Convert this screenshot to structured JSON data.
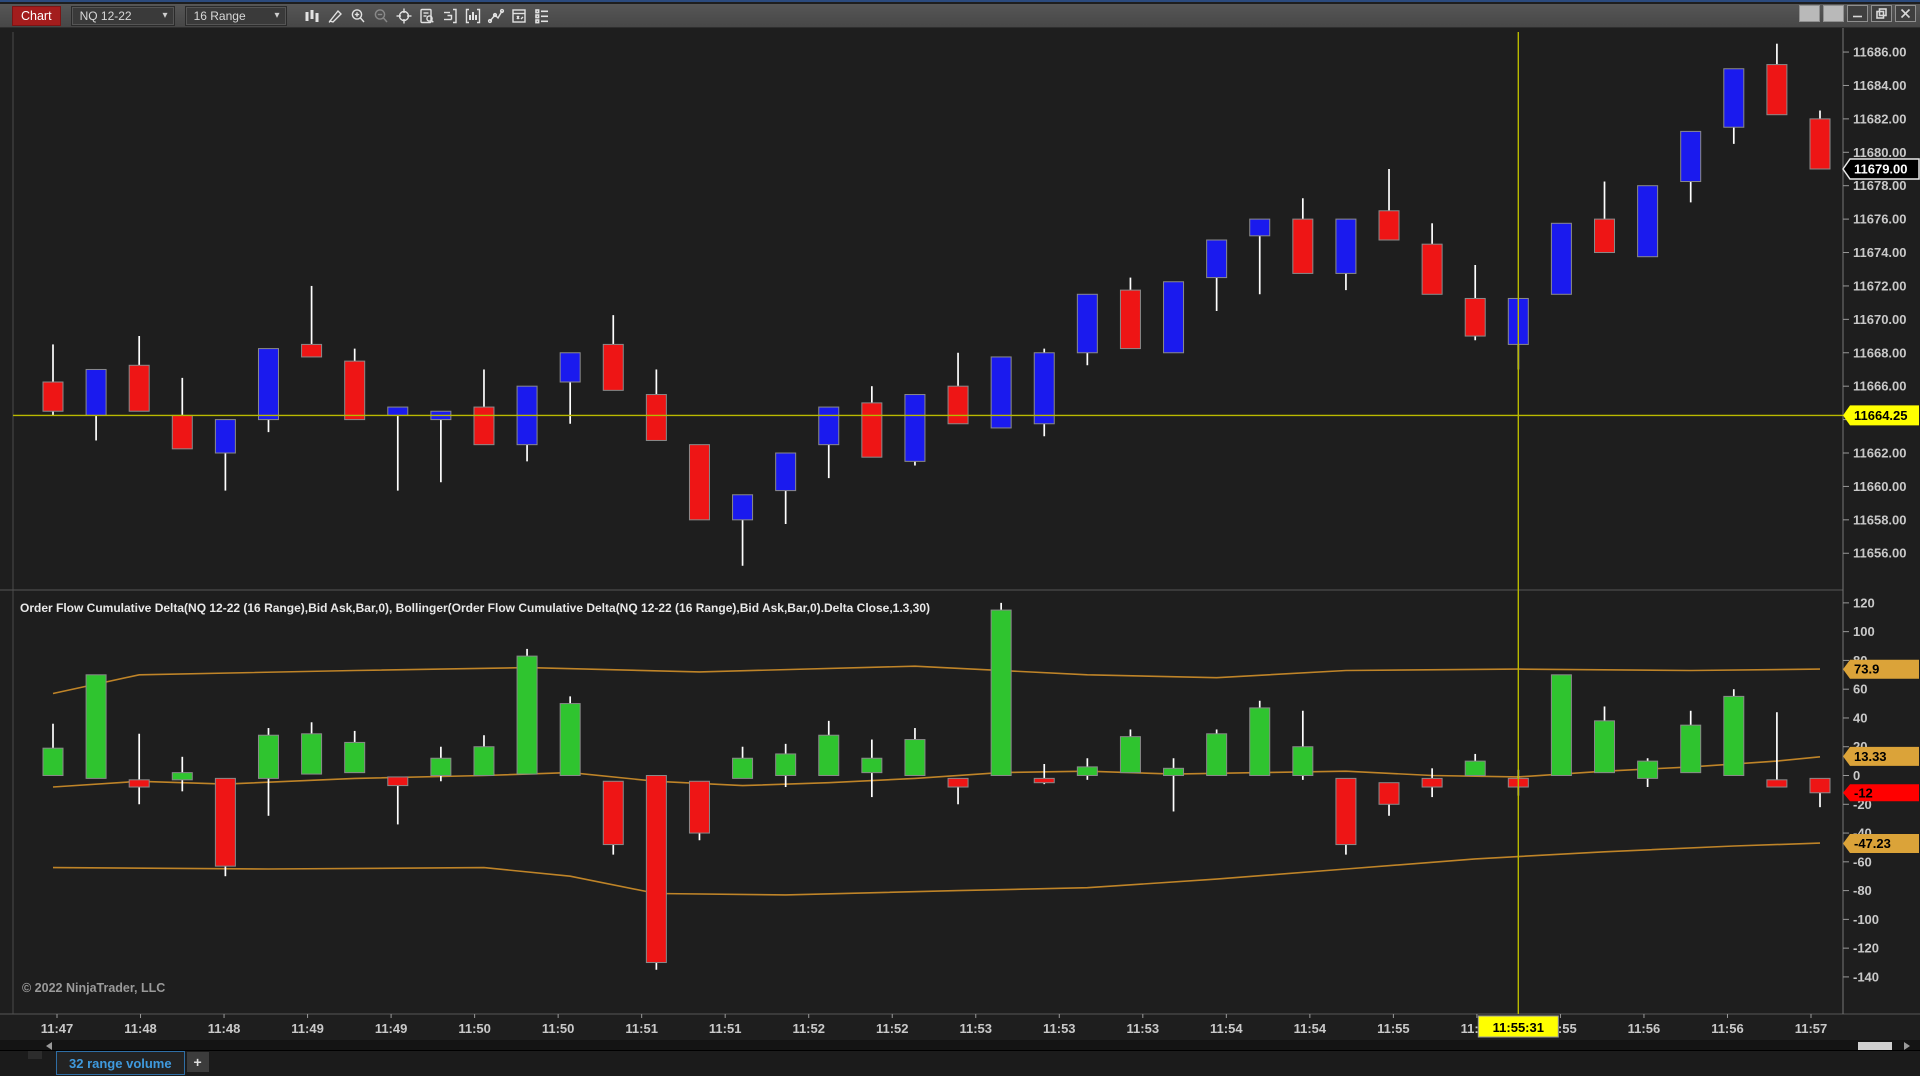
{
  "window": {
    "title": "Chart",
    "controls": [
      {
        "name": "pin-button",
        "type": "solid"
      },
      {
        "name": "settings-button",
        "type": "solid"
      },
      {
        "name": "minimize-button",
        "type": "minimize"
      },
      {
        "name": "restore-button",
        "type": "restore"
      },
      {
        "name": "close-button",
        "type": "close"
      }
    ]
  },
  "toolbar": {
    "chart_label": "Chart",
    "instrument": "NQ 12-22",
    "period": "16 Range",
    "icons": [
      "chart-style-icon",
      "drawing-tools-icon",
      "zoom-in-icon",
      "zoom-out-icon",
      "crosshair-icon",
      "data-box-icon",
      "chart-trader-icon",
      "indicators-icon",
      "drawing-line-icon",
      "strategies-icon",
      "properties-icon"
    ]
  },
  "footer": {
    "tab_label": "32 range volume",
    "add_tab_label": "+"
  },
  "copyright": "© 2022 NinjaTrader, LLC",
  "indicator_title": "Order Flow Cumulative Delta(NQ 12-22 (16 Range),Bid Ask,Bar,0), Bollinger(Order Flow Cumulative Delta(NQ 12-22 (16 Range),Bid Ask,Bar,0).Delta Close,1.3,30)",
  "crosshair": {
    "time_label": "11:55:31",
    "price_label": "11664.25",
    "bar_index": 35
  },
  "price_axis": {
    "last_price": "11679.00"
  },
  "delta_axis": {
    "upper_band": "73.9",
    "middle_band": "13.33",
    "last_delta": "-12",
    "lower_band": "-47.23"
  },
  "colors": {
    "bg": "#1e1e1e",
    "panel_border": "#555555",
    "axis_text": "#c9c9c9",
    "up": "#1a1aee",
    "down": "#ee1515",
    "delta_up": "#2fc42f",
    "delta_down": "#ee1515",
    "wick": "#ffffff",
    "candle_edge": "#8a8a8a",
    "band": "#bf8428",
    "crosshair": "#b9b900",
    "marker_last_bg": "#000000",
    "marker_last_text": "#ffffff",
    "marker_cross_bg": "#ffff00",
    "marker_band_bg": "#dba339",
    "marker_delta_bg": "#ff0000",
    "marker_dark_text": "#000000",
    "title_text": "#e8e8e8",
    "copyright_text": "#9a9a9a"
  },
  "time_axis": {
    "labels": [
      "11:47",
      "11:48",
      "11:48",
      "11:49",
      "11:49",
      "11:50",
      "11:50",
      "11:51",
      "11:51",
      "11:52",
      "11:52",
      "11:53",
      "11:53",
      "11:53",
      "11:54",
      "11:54",
      "11:55",
      "11:55",
      "11:55",
      "11:56",
      "11:56",
      "11:57"
    ]
  },
  "chart_data": [
    {
      "type": "candlestick",
      "title": "NQ 12-22 (16 Range) price panel",
      "ylabel": "Price",
      "ylim": [
        11653.8,
        11687.2
      ],
      "yticks": [
        11686,
        11684,
        11682,
        11680,
        11678,
        11676,
        11674,
        11672,
        11670,
        11668,
        11666,
        11664,
        11662,
        11660,
        11658,
        11656
      ],
      "last_price": 11679.0,
      "crosshair_price": 11664.25,
      "bars": [
        {
          "o": 11666.25,
          "h": 11668.5,
          "l": 11664.25,
          "c": 11664.5
        },
        {
          "o": 11664.25,
          "h": 11667.0,
          "l": 11662.75,
          "c": 11667.0
        },
        {
          "o": 11667.25,
          "h": 11669.0,
          "l": 11664.5,
          "c": 11664.5
        },
        {
          "o": 11664.25,
          "h": 11666.5,
          "l": 11662.25,
          "c": 11662.25
        },
        {
          "o": 11662.0,
          "h": 11664.0,
          "l": 11659.75,
          "c": 11664.0
        },
        {
          "o": 11664.0,
          "h": 11668.25,
          "l": 11663.25,
          "c": 11668.25
        },
        {
          "o": 11668.5,
          "h": 11672.0,
          "l": 11667.75,
          "c": 11667.75
        },
        {
          "o": 11667.5,
          "h": 11668.25,
          "l": 11664.0,
          "c": 11664.0
        },
        {
          "o": 11664.25,
          "h": 11664.75,
          "l": 11659.75,
          "c": 11664.75
        },
        {
          "o": 11664.0,
          "h": 11664.5,
          "l": 11660.25,
          "c": 11664.5
        },
        {
          "o": 11664.75,
          "h": 11667.0,
          "l": 11662.5,
          "c": 11662.5
        },
        {
          "o": 11662.5,
          "h": 11666.0,
          "l": 11661.5,
          "c": 11666.0
        },
        {
          "o": 11666.25,
          "h": 11668.0,
          "l": 11663.75,
          "c": 11668.0
        },
        {
          "o": 11668.5,
          "h": 11670.25,
          "l": 11665.75,
          "c": 11665.75
        },
        {
          "o": 11665.5,
          "h": 11667.0,
          "l": 11662.75,
          "c": 11662.75
        },
        {
          "o": 11662.5,
          "h": 11662.5,
          "l": 11658.0,
          "c": 11658.0
        },
        {
          "o": 11658.0,
          "h": 11659.5,
          "l": 11655.25,
          "c": 11659.5
        },
        {
          "o": 11659.75,
          "h": 11662.0,
          "l": 11657.75,
          "c": 11662.0
        },
        {
          "o": 11662.5,
          "h": 11664.75,
          "l": 11660.5,
          "c": 11664.75
        },
        {
          "o": 11665.0,
          "h": 11666.0,
          "l": 11661.75,
          "c": 11661.75
        },
        {
          "o": 11661.5,
          "h": 11665.5,
          "l": 11661.25,
          "c": 11665.5
        },
        {
          "o": 11666.0,
          "h": 11668.0,
          "l": 11663.75,
          "c": 11663.75
        },
        {
          "o": 11663.5,
          "h": 11667.75,
          "l": 11663.5,
          "c": 11667.75
        },
        {
          "o": 11663.75,
          "h": 11668.25,
          "l": 11663.0,
          "c": 11668.0
        },
        {
          "o": 11668.0,
          "h": 11671.5,
          "l": 11667.25,
          "c": 11671.5
        },
        {
          "o": 11671.75,
          "h": 11672.5,
          "l": 11668.25,
          "c": 11668.25
        },
        {
          "o": 11668.0,
          "h": 11672.25,
          "l": 11668.0,
          "c": 11672.25
        },
        {
          "o": 11672.5,
          "h": 11674.75,
          "l": 11670.5,
          "c": 11674.75
        },
        {
          "o": 11675.0,
          "h": 11676.0,
          "l": 11671.5,
          "c": 11676.0
        },
        {
          "o": 11676.0,
          "h": 11677.25,
          "l": 11672.75,
          "c": 11672.75
        },
        {
          "o": 11672.75,
          "h": 11676.0,
          "l": 11671.75,
          "c": 11676.0
        },
        {
          "o": 11676.5,
          "h": 11679.0,
          "l": 11674.75,
          "c": 11674.75
        },
        {
          "o": 11674.5,
          "h": 11675.75,
          "l": 11671.5,
          "c": 11671.5
        },
        {
          "o": 11671.25,
          "h": 11673.25,
          "l": 11668.75,
          "c": 11669.0
        },
        {
          "o": 11668.5,
          "h": 11671.25,
          "l": 11667.0,
          "c": 11671.25
        },
        {
          "o": 11671.5,
          "h": 11675.75,
          "l": 11671.5,
          "c": 11675.75
        },
        {
          "o": 11676.0,
          "h": 11678.25,
          "l": 11674.0,
          "c": 11674.0
        },
        {
          "o": 11673.75,
          "h": 11678.0,
          "l": 11673.75,
          "c": 11678.0
        },
        {
          "o": 11678.25,
          "h": 11681.25,
          "l": 11677.0,
          "c": 11681.25
        },
        {
          "o": 11681.5,
          "h": 11685.0,
          "l": 11680.5,
          "c": 11685.0
        },
        {
          "o": 11685.25,
          "h": 11686.5,
          "l": 11682.25,
          "c": 11682.25
        },
        {
          "o": 11682.0,
          "h": 11682.5,
          "l": 11679.0,
          "c": 11679.0
        }
      ]
    },
    {
      "type": "candlestick-delta",
      "title": "Order Flow Cumulative Delta with Bollinger(1.3,30)",
      "ylabel": "Delta",
      "ylim": [
        -163,
        122
      ],
      "yticks": [
        120,
        100,
        80,
        60,
        40,
        20,
        0,
        -20,
        -40,
        -60,
        -80,
        -100,
        -120,
        -140
      ],
      "last_delta": -12,
      "band_last": {
        "upper": 73.9,
        "middle": 13.33,
        "lower": -47.23
      },
      "bars": [
        {
          "o": 0,
          "h": 36,
          "l": 0,
          "c": 19
        },
        {
          "o": -2,
          "h": 70,
          "l": -2,
          "c": 70
        },
        {
          "o": -3,
          "h": 29,
          "l": -20,
          "c": -8
        },
        {
          "o": -3,
          "h": 13,
          "l": -11,
          "c": 2
        },
        {
          "o": -2,
          "h": -2,
          "l": -70,
          "c": -63
        },
        {
          "o": -2,
          "h": 33,
          "l": -28,
          "c": 28
        },
        {
          "o": 1,
          "h": 37,
          "l": 1,
          "c": 29
        },
        {
          "o": 2,
          "h": 31,
          "l": 2,
          "c": 23
        },
        {
          "o": -1,
          "h": -1,
          "l": -34,
          "c": -7
        },
        {
          "o": 0,
          "h": 20,
          "l": -4,
          "c": 12
        },
        {
          "o": 0,
          "h": 28,
          "l": 0,
          "c": 20
        },
        {
          "o": 1,
          "h": 88,
          "l": 1,
          "c": 83
        },
        {
          "o": 0,
          "h": 55,
          "l": 0,
          "c": 50
        },
        {
          "o": -4,
          "h": -4,
          "l": -55,
          "c": -48
        },
        {
          "o": 0,
          "h": 0,
          "l": -135,
          "c": -130
        },
        {
          "o": -4,
          "h": -4,
          "l": -45,
          "c": -40
        },
        {
          "o": -2,
          "h": 20,
          "l": -2,
          "c": 12
        },
        {
          "o": 0,
          "h": 22,
          "l": -8,
          "c": 15
        },
        {
          "o": 0,
          "h": 38,
          "l": 0,
          "c": 28
        },
        {
          "o": 2,
          "h": 25,
          "l": -15,
          "c": 12
        },
        {
          "o": 0,
          "h": 33,
          "l": 0,
          "c": 25
        },
        {
          "o": -2,
          "h": -2,
          "l": -20,
          "c": -8
        },
        {
          "o": 0,
          "h": 120,
          "l": 0,
          "c": 115
        },
        {
          "o": -2,
          "h": 8,
          "l": -6,
          "c": -5
        },
        {
          "o": 0,
          "h": 12,
          "l": -3,
          "c": 6
        },
        {
          "o": 2,
          "h": 32,
          "l": 2,
          "c": 27
        },
        {
          "o": 0,
          "h": 12,
          "l": -25,
          "c": 5
        },
        {
          "o": 0,
          "h": 32,
          "l": 0,
          "c": 29
        },
        {
          "o": 0,
          "h": 52,
          "l": 0,
          "c": 47
        },
        {
          "o": 0,
          "h": 45,
          "l": -3,
          "c": 20
        },
        {
          "o": -2,
          "h": -2,
          "l": -55,
          "c": -48
        },
        {
          "o": -5,
          "h": -5,
          "l": -28,
          "c": -20
        },
        {
          "o": -2,
          "h": 5,
          "l": -15,
          "c": -8
        },
        {
          "o": 0,
          "h": 15,
          "l": 0,
          "c": 10
        },
        {
          "o": -2,
          "h": 4,
          "l": -14,
          "c": -8
        },
        {
          "o": 0,
          "h": 70,
          "l": 0,
          "c": 70
        },
        {
          "o": 2,
          "h": 48,
          "l": 2,
          "c": 38
        },
        {
          "o": -2,
          "h": 12,
          "l": -8,
          "c": 10
        },
        {
          "o": 2,
          "h": 45,
          "l": 2,
          "c": 35
        },
        {
          "o": 0,
          "h": 60,
          "l": 0,
          "c": 55
        },
        {
          "o": -3,
          "h": 44,
          "l": -3,
          "c": -8
        },
        {
          "o": -2,
          "h": -2,
          "l": -22,
          "c": -12
        }
      ],
      "bands": {
        "upper": [
          [
            1,
            57
          ],
          [
            3,
            70
          ],
          [
            8,
            73
          ],
          [
            12,
            75
          ],
          [
            16,
            72
          ],
          [
            21,
            76
          ],
          [
            25,
            70
          ],
          [
            28,
            68
          ],
          [
            31,
            73
          ],
          [
            35,
            74
          ],
          [
            39,
            73
          ],
          [
            42,
            74
          ]
        ],
        "middle": [
          [
            1,
            -8
          ],
          [
            3,
            -4
          ],
          [
            5,
            -6
          ],
          [
            8,
            -2
          ],
          [
            11,
            0
          ],
          [
            13,
            2
          ],
          [
            15,
            -4
          ],
          [
            17,
            -7
          ],
          [
            19,
            -5
          ],
          [
            21,
            -2
          ],
          [
            23,
            2
          ],
          [
            25,
            3
          ],
          [
            27,
            1
          ],
          [
            29,
            2
          ],
          [
            31,
            3
          ],
          [
            33,
            0
          ],
          [
            35,
            -1
          ],
          [
            37,
            3
          ],
          [
            39,
            6
          ],
          [
            41,
            10
          ],
          [
            42,
            13
          ]
        ],
        "lower": [
          [
            1,
            -64
          ],
          [
            6,
            -65
          ],
          [
            11,
            -64
          ],
          [
            13,
            -70
          ],
          [
            15,
            -82
          ],
          [
            18,
            -83
          ],
          [
            22,
            -80
          ],
          [
            25,
            -78
          ],
          [
            28,
            -72
          ],
          [
            31,
            -65
          ],
          [
            34,
            -58
          ],
          [
            37,
            -53
          ],
          [
            40,
            -49
          ],
          [
            42,
            -47
          ]
        ]
      }
    }
  ]
}
